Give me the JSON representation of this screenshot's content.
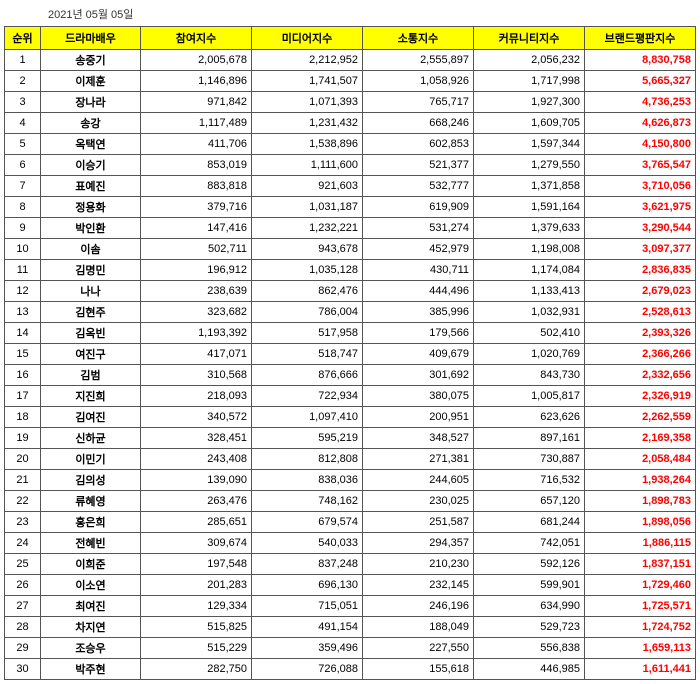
{
  "date_label": "2021년 05월 05일",
  "columns": [
    "순위",
    "드라마배우",
    "참여지수",
    "미디어지수",
    "소통지수",
    "커뮤니티지수",
    "브랜드평판지수"
  ],
  "rows": [
    {
      "rank": 1,
      "name": "송중기",
      "v1": "2,005,678",
      "v2": "2,212,952",
      "v3": "2,555,897",
      "v4": "2,056,232",
      "brand": "8,830,758"
    },
    {
      "rank": 2,
      "name": "이제훈",
      "v1": "1,146,896",
      "v2": "1,741,507",
      "v3": "1,058,926",
      "v4": "1,717,998",
      "brand": "5,665,327"
    },
    {
      "rank": 3,
      "name": "장나라",
      "v1": "971,842",
      "v2": "1,071,393",
      "v3": "765,717",
      "v4": "1,927,300",
      "brand": "4,736,253"
    },
    {
      "rank": 4,
      "name": "송강",
      "v1": "1,117,489",
      "v2": "1,231,432",
      "v3": "668,246",
      "v4": "1,609,705",
      "brand": "4,626,873"
    },
    {
      "rank": 5,
      "name": "옥택연",
      "v1": "411,706",
      "v2": "1,538,896",
      "v3": "602,853",
      "v4": "1,597,344",
      "brand": "4,150,800"
    },
    {
      "rank": 6,
      "name": "이승기",
      "v1": "853,019",
      "v2": "1,111,600",
      "v3": "521,377",
      "v4": "1,279,550",
      "brand": "3,765,547"
    },
    {
      "rank": 7,
      "name": "표예진",
      "v1": "883,818",
      "v2": "921,603",
      "v3": "532,777",
      "v4": "1,371,858",
      "brand": "3,710,056"
    },
    {
      "rank": 8,
      "name": "정용화",
      "v1": "379,716",
      "v2": "1,031,187",
      "v3": "619,909",
      "v4": "1,591,164",
      "brand": "3,621,975"
    },
    {
      "rank": 9,
      "name": "박인환",
      "v1": "147,416",
      "v2": "1,232,221",
      "v3": "531,274",
      "v4": "1,379,633",
      "brand": "3,290,544"
    },
    {
      "rank": 10,
      "name": "이솜",
      "v1": "502,711",
      "v2": "943,678",
      "v3": "452,979",
      "v4": "1,198,008",
      "brand": "3,097,377"
    },
    {
      "rank": 11,
      "name": "김명민",
      "v1": "196,912",
      "v2": "1,035,128",
      "v3": "430,711",
      "v4": "1,174,084",
      "brand": "2,836,835"
    },
    {
      "rank": 12,
      "name": "나나",
      "v1": "238,639",
      "v2": "862,476",
      "v3": "444,496",
      "v4": "1,133,413",
      "brand": "2,679,023"
    },
    {
      "rank": 13,
      "name": "김현주",
      "v1": "323,682",
      "v2": "786,004",
      "v3": "385,996",
      "v4": "1,032,931",
      "brand": "2,528,613"
    },
    {
      "rank": 14,
      "name": "김옥빈",
      "v1": "1,193,392",
      "v2": "517,958",
      "v3": "179,566",
      "v4": "502,410",
      "brand": "2,393,326"
    },
    {
      "rank": 15,
      "name": "여진구",
      "v1": "417,071",
      "v2": "518,747",
      "v3": "409,679",
      "v4": "1,020,769",
      "brand": "2,366,266"
    },
    {
      "rank": 16,
      "name": "김범",
      "v1": "310,568",
      "v2": "876,666",
      "v3": "301,692",
      "v4": "843,730",
      "brand": "2,332,656"
    },
    {
      "rank": 17,
      "name": "지진희",
      "v1": "218,093",
      "v2": "722,934",
      "v3": "380,075",
      "v4": "1,005,817",
      "brand": "2,326,919"
    },
    {
      "rank": 18,
      "name": "김여진",
      "v1": "340,572",
      "v2": "1,097,410",
      "v3": "200,951",
      "v4": "623,626",
      "brand": "2,262,559"
    },
    {
      "rank": 19,
      "name": "신하균",
      "v1": "328,451",
      "v2": "595,219",
      "v3": "348,527",
      "v4": "897,161",
      "brand": "2,169,358"
    },
    {
      "rank": 20,
      "name": "이민기",
      "v1": "243,408",
      "v2": "812,808",
      "v3": "271,381",
      "v4": "730,887",
      "brand": "2,058,484"
    },
    {
      "rank": 21,
      "name": "김의성",
      "v1": "139,090",
      "v2": "838,036",
      "v3": "244,605",
      "v4": "716,532",
      "brand": "1,938,264"
    },
    {
      "rank": 22,
      "name": "류혜영",
      "v1": "263,476",
      "v2": "748,162",
      "v3": "230,025",
      "v4": "657,120",
      "brand": "1,898,783"
    },
    {
      "rank": 23,
      "name": "홍은희",
      "v1": "285,651",
      "v2": "679,574",
      "v3": "251,587",
      "v4": "681,244",
      "brand": "1,898,056"
    },
    {
      "rank": 24,
      "name": "전혜빈",
      "v1": "309,674",
      "v2": "540,033",
      "v3": "294,357",
      "v4": "742,051",
      "brand": "1,886,115"
    },
    {
      "rank": 25,
      "name": "이희준",
      "v1": "197,548",
      "v2": "837,248",
      "v3": "210,230",
      "v4": "592,126",
      "brand": "1,837,151"
    },
    {
      "rank": 26,
      "name": "이소연",
      "v1": "201,283",
      "v2": "696,130",
      "v3": "232,145",
      "v4": "599,901",
      "brand": "1,729,460"
    },
    {
      "rank": 27,
      "name": "최여진",
      "v1": "129,334",
      "v2": "715,051",
      "v3": "246,196",
      "v4": "634,990",
      "brand": "1,725,571"
    },
    {
      "rank": 28,
      "name": "차지연",
      "v1": "515,825",
      "v2": "491,154",
      "v3": "188,049",
      "v4": "529,723",
      "brand": "1,724,752"
    },
    {
      "rank": 29,
      "name": "조승우",
      "v1": "515,229",
      "v2": "359,496",
      "v3": "227,550",
      "v4": "556,838",
      "brand": "1,659,113"
    },
    {
      "rank": 30,
      "name": "박주현",
      "v1": "282,750",
      "v2": "726,088",
      "v3": "155,618",
      "v4": "446,985",
      "brand": "1,611,441"
    }
  ]
}
